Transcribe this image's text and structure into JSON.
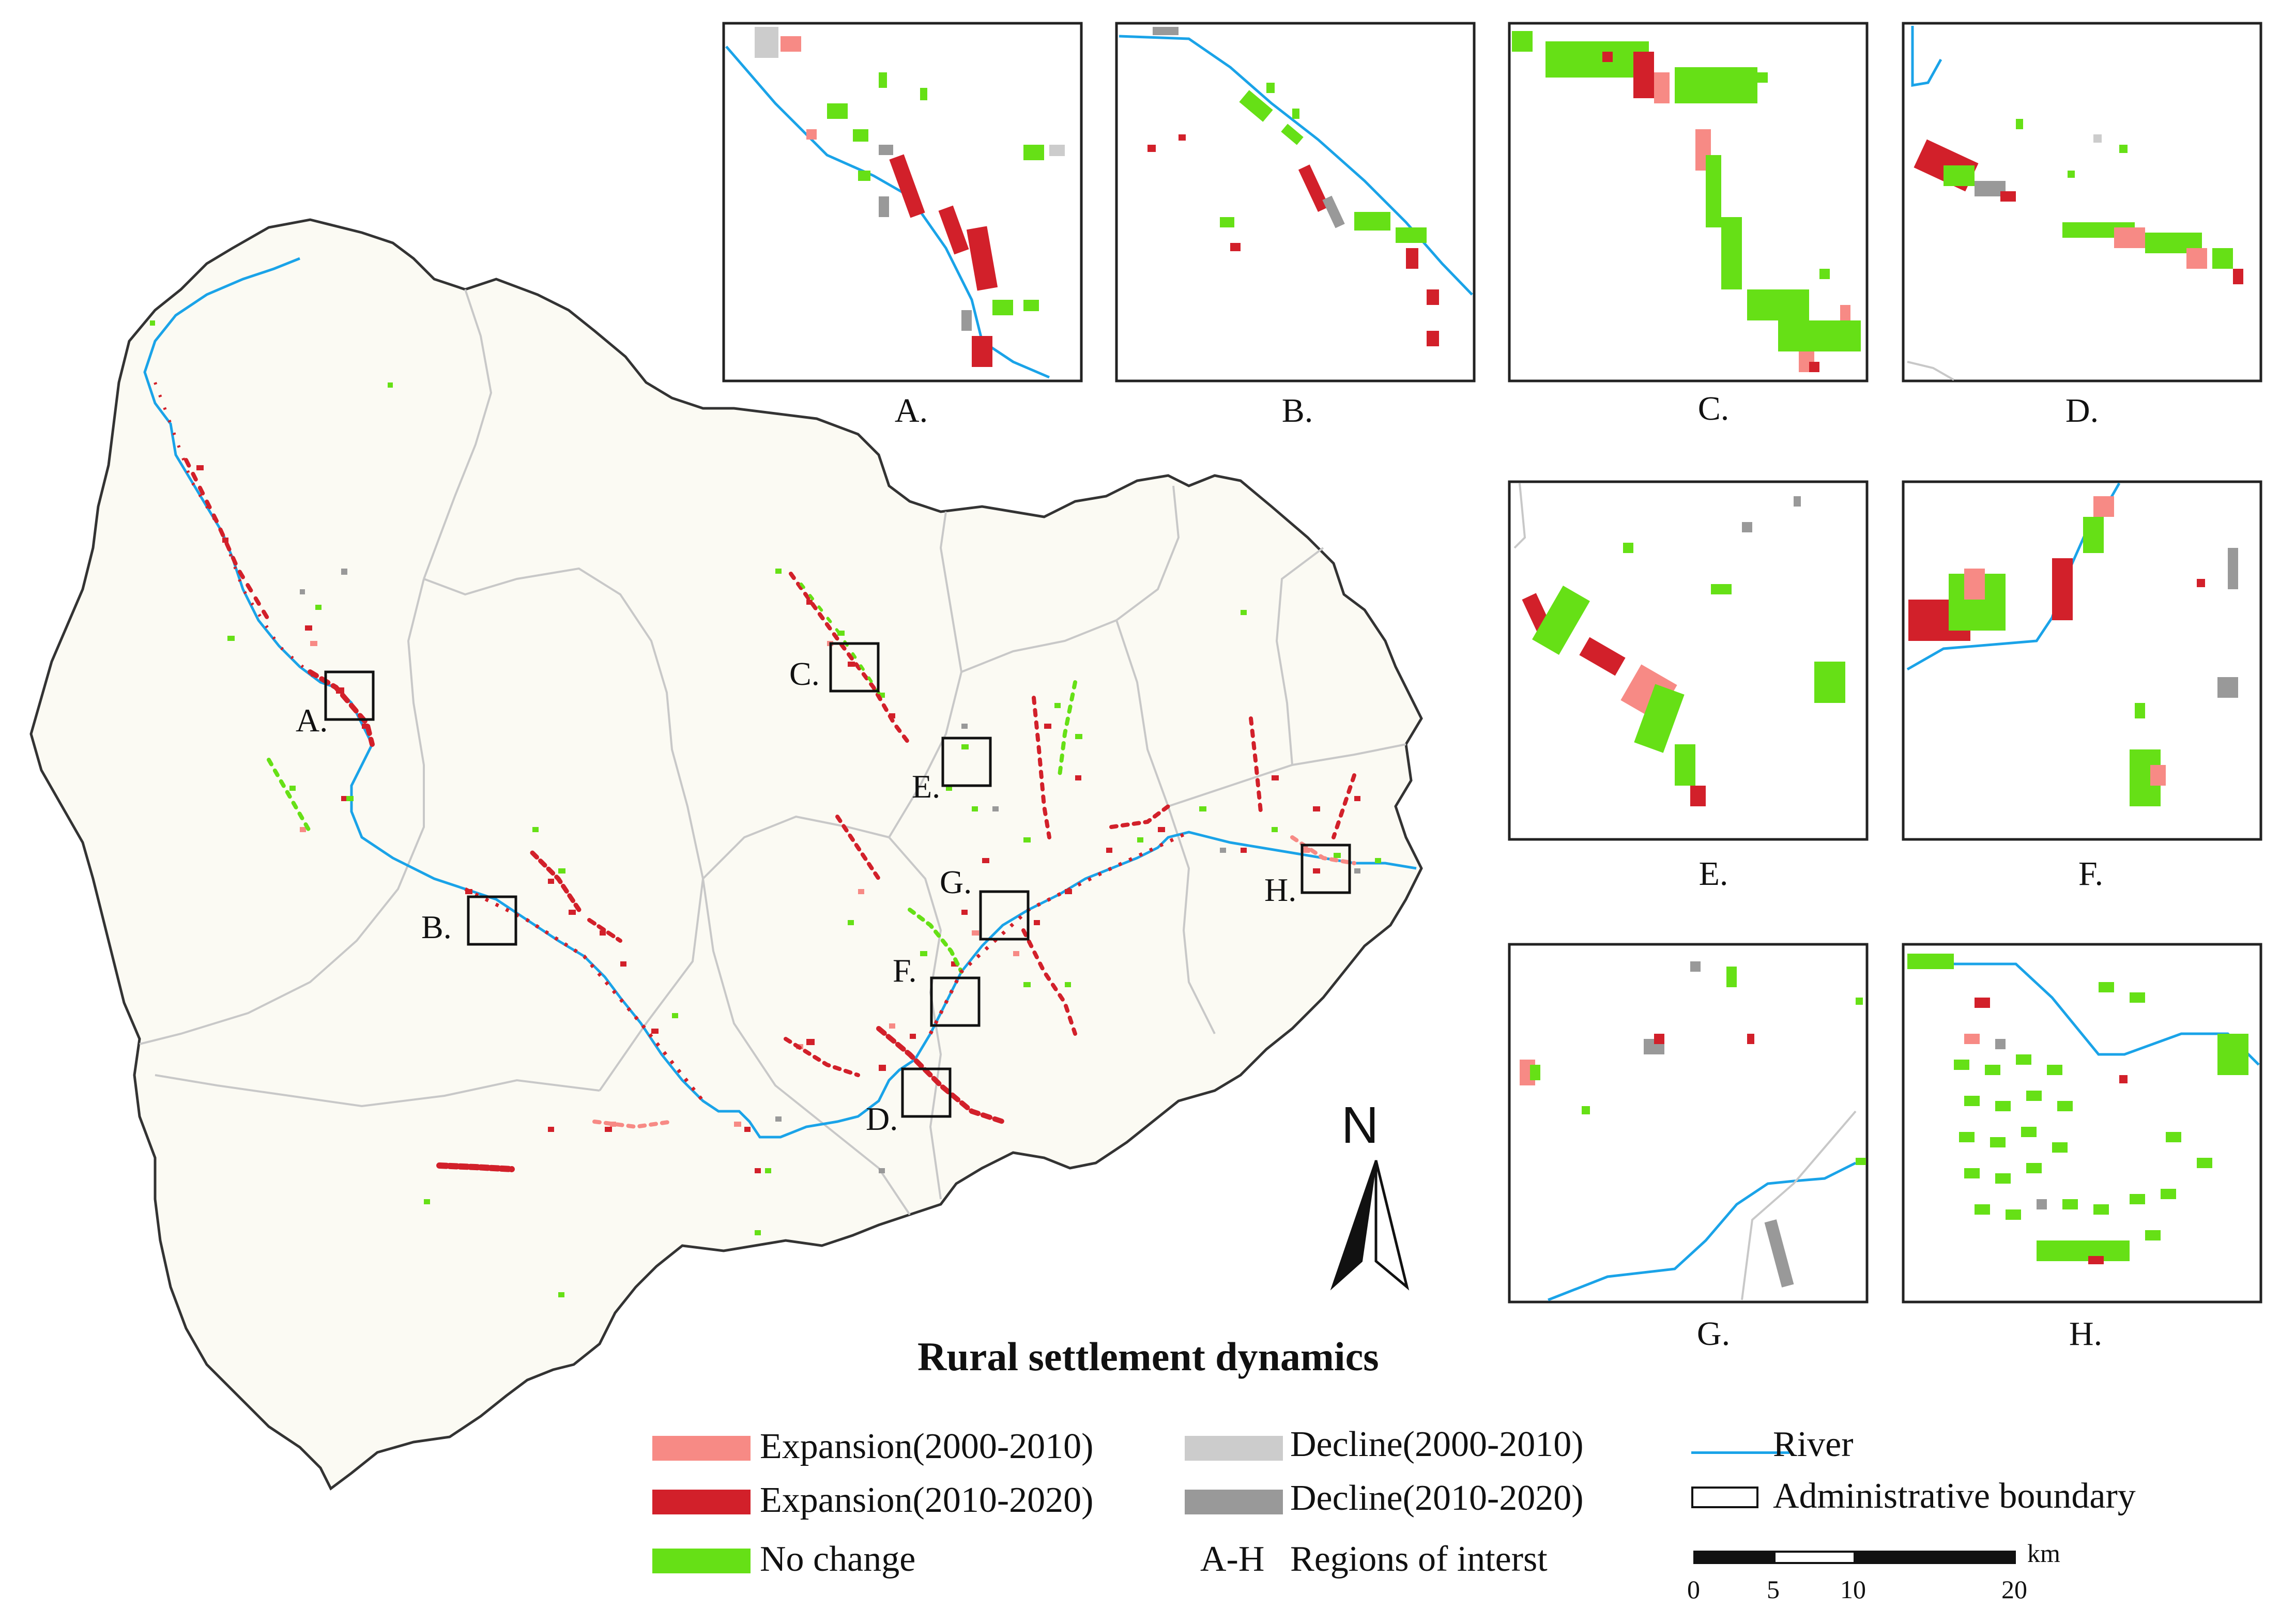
{
  "title": "Rural settlement dynamics",
  "colors": {
    "expansion_2000_2010": "#f78a85",
    "expansion_2010_2020": "#d2202a",
    "no_change": "#66e016",
    "decline_2000_2010": "#cccccc",
    "decline_2010_2020": "#999999",
    "river": "#1aa3e8",
    "boundary": "#c8c8c8",
    "basin_fill": "#fbfaf3"
  },
  "regions_on_map": [
    "A.",
    "B.",
    "C.",
    "D.",
    "E.",
    "F.",
    "G.",
    "H."
  ],
  "insets": [
    "A.",
    "B.",
    "C.",
    "D.",
    "E.",
    "F.",
    "G.",
    "H."
  ],
  "legend": {
    "expansion_2000_2010": "Expansion(2000-2010)",
    "expansion_2010_2020": "Expansion(2010-2020)",
    "no_change": "No change",
    "decline_2000_2010": "Decline(2000-2010)",
    "decline_2010_2020": "Decline(2010-2020)",
    "roi_key": "A-H",
    "roi_label": "Regions of interst",
    "river": "River",
    "admin_boundary": "Administrative boundary"
  },
  "north_label": "N",
  "scale_bar": {
    "unit": "km",
    "ticks": [
      "0",
      "5",
      "10",
      "20"
    ]
  }
}
